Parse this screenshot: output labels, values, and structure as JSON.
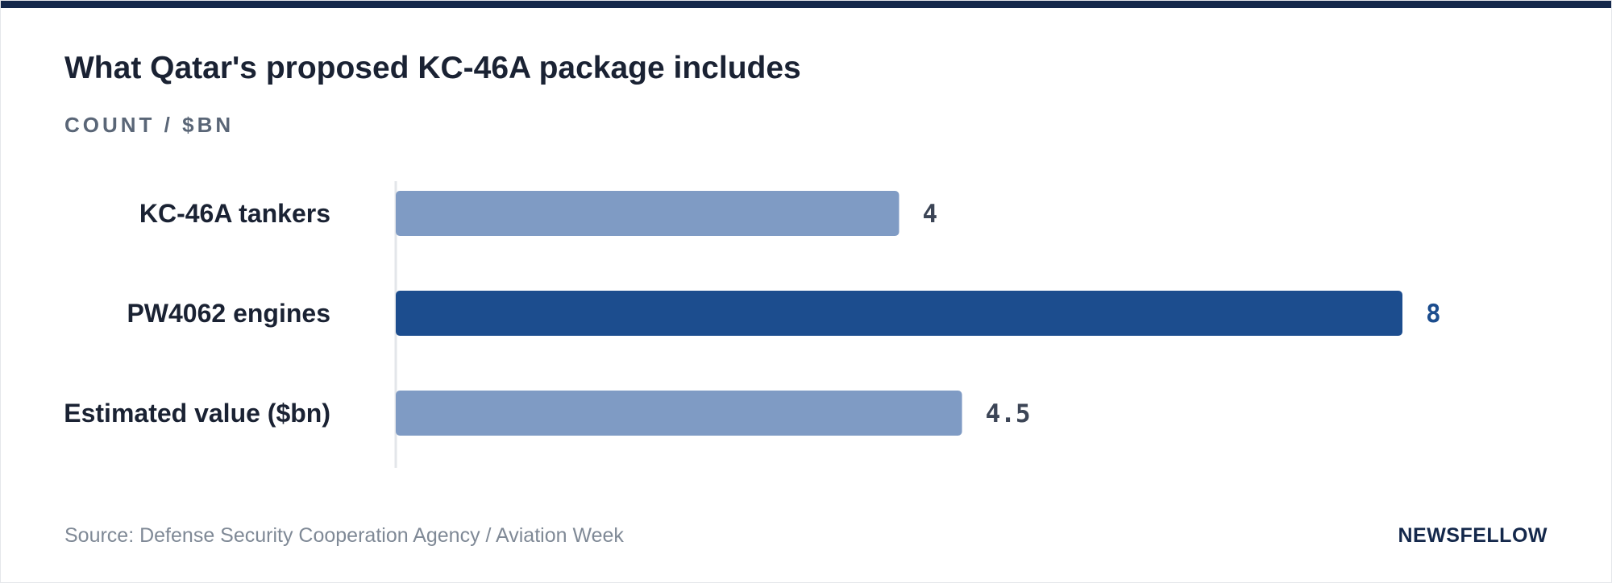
{
  "title": "What Qatar's proposed KC-46A package includes",
  "subtitle": "COUNT / $BN",
  "source": "Source: Defense Security Cooperation Agency / Aviation Week",
  "brand": "NEWSFELLOW",
  "colors": {
    "bar_default": "#7f9bc4",
    "bar_highlight": "#1c4d8e",
    "label_default": "#3c4556",
    "label_highlight": "#1c4d8e",
    "top_bar": "#14284b"
  },
  "chart_data": {
    "type": "bar",
    "orientation": "horizontal",
    "categories": [
      "KC-46A tankers",
      "PW4062 engines",
      "Estimated value ($bn)"
    ],
    "values": [
      4,
      8,
      4.5
    ],
    "value_labels": [
      "4",
      "8",
      "4.5"
    ],
    "highlight": [
      false,
      true,
      false
    ],
    "xlim": [
      0,
      8
    ],
    "grid": false
  }
}
